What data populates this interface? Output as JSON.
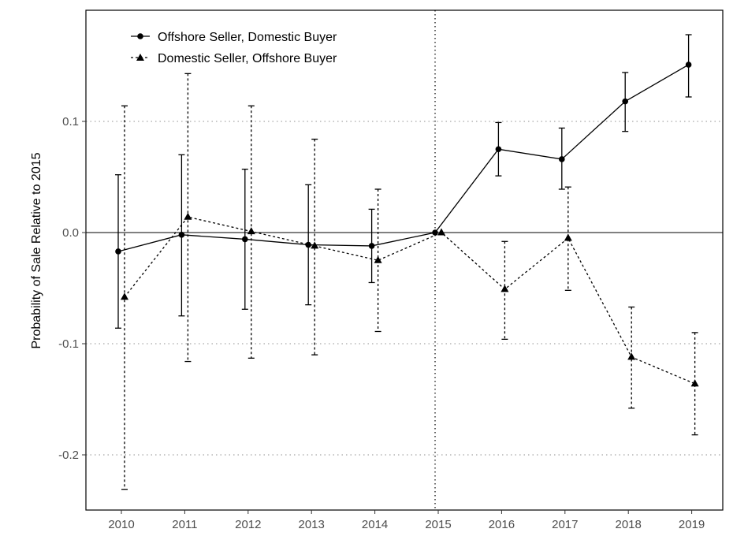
{
  "chart_data": {
    "type": "line",
    "ylabel": "Probability of Sale Relative to 2015",
    "xlabel": "",
    "x": [
      2010,
      2011,
      2012,
      2013,
      2014,
      2015,
      2016,
      2017,
      2018,
      2019
    ],
    "x_tick_labels": [
      "2010",
      "2011",
      "2012",
      "2013",
      "2014",
      "2015",
      "2016",
      "2017",
      "2018",
      "2019"
    ],
    "y_ticks": [
      -0.2,
      -0.1,
      0.0,
      0.1
    ],
    "y_tick_labels": [
      "-0.2",
      "-0.1",
      "0.0",
      "0.1"
    ],
    "ylim": [
      -0.252,
      0.198
    ],
    "reference_lines": {
      "horizontal_y": 0.0,
      "vertical_x": 2015
    },
    "grid": "horizontal dotted at y ticks",
    "legend_position": "top-left",
    "series": [
      {
        "name": "Offshore Seller, Domestic Buyer",
        "marker": "circle",
        "line_style": "solid",
        "values": [
          -0.017,
          -0.002,
          -0.006,
          -0.011,
          -0.012,
          0.0,
          0.075,
          0.066,
          0.118,
          0.151
        ],
        "ci_lower": [
          -0.086,
          -0.075,
          -0.069,
          -0.065,
          -0.045,
          0.0,
          0.051,
          0.039,
          0.091,
          0.122
        ],
        "ci_upper": [
          0.052,
          0.07,
          0.057,
          0.043,
          0.021,
          0.0,
          0.099,
          0.094,
          0.144,
          0.178
        ]
      },
      {
        "name": "Domestic Seller, Offshore Buyer",
        "marker": "triangle",
        "line_style": "dashed",
        "values": [
          -0.058,
          0.014,
          0.001,
          -0.012,
          -0.025,
          0.0,
          -0.051,
          -0.005,
          -0.112,
          -0.136
        ],
        "ci_lower": [
          -0.231,
          -0.116,
          -0.113,
          -0.11,
          -0.089,
          0.0,
          -0.096,
          -0.052,
          -0.158,
          -0.182
        ],
        "ci_upper": [
          0.114,
          0.143,
          0.114,
          0.084,
          0.039,
          0.0,
          -0.008,
          0.041,
          -0.067,
          -0.09
        ]
      }
    ]
  }
}
